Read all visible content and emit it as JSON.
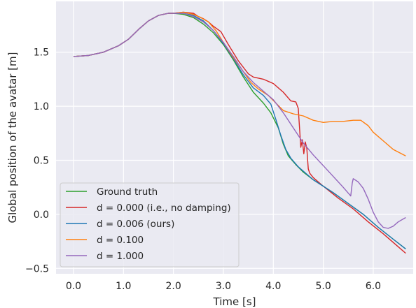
{
  "chart_data": {
    "type": "line",
    "xlabel": "Time [s]",
    "ylabel": "Global position of the avatar [m]",
    "xlim": [
      -0.35,
      6.8
    ],
    "ylim": [
      -0.55,
      1.97
    ],
    "xticks": [
      0.0,
      1.0,
      2.0,
      3.0,
      4.0,
      5.0,
      6.0
    ],
    "xtick_labels": [
      "0.0",
      "1.0",
      "2.0",
      "3.0",
      "4.0",
      "5.0",
      "6.0"
    ],
    "yticks": [
      -0.5,
      0.0,
      0.5,
      1.0,
      1.5
    ],
    "ytick_labels": [
      "−0.5",
      "0.0",
      "0.5",
      "1.0",
      "1.5"
    ],
    "grid": true,
    "legend_position": "lower-left",
    "background": "#eaeaf2",
    "series": [
      {
        "name": "Ground truth",
        "color": "#2ca02c",
        "x": [
          0.0,
          0.3,
          0.6,
          0.9,
          1.1,
          1.3,
          1.5,
          1.7,
          1.9,
          2.0,
          2.2,
          2.4,
          2.6,
          2.8,
          3.0,
          3.2,
          3.4,
          3.6,
          3.8,
          3.95,
          4.1,
          4.2,
          4.3,
          4.45,
          4.6,
          4.8,
          5.0,
          5.2,
          5.5,
          5.8,
          6.1,
          6.4,
          6.65
        ],
        "y": [
          1.46,
          1.47,
          1.5,
          1.56,
          1.62,
          1.71,
          1.79,
          1.84,
          1.86,
          1.86,
          1.85,
          1.82,
          1.76,
          1.68,
          1.57,
          1.43,
          1.27,
          1.13,
          1.03,
          0.94,
          0.8,
          0.65,
          0.54,
          0.46,
          0.39,
          0.32,
          0.26,
          0.2,
          0.1,
          0.0,
          -0.12,
          -0.23,
          -0.32
        ]
      },
      {
        "name": "d = 0.000 (i.e., no damping)",
        "color": "#d62728",
        "x": [
          0.0,
          0.3,
          0.6,
          0.9,
          1.1,
          1.3,
          1.5,
          1.7,
          1.9,
          2.0,
          2.2,
          2.4,
          2.5,
          2.6,
          2.7,
          2.8,
          2.95,
          3.1,
          3.3,
          3.45,
          3.5,
          3.6,
          3.8,
          4.0,
          4.2,
          4.35,
          4.45,
          4.5,
          4.55,
          4.58,
          4.61,
          4.64,
          4.67,
          4.7,
          4.73,
          4.8,
          5.0,
          5.3,
          5.6,
          5.9,
          6.2,
          6.5,
          6.65
        ],
        "y": [
          1.46,
          1.47,
          1.5,
          1.56,
          1.62,
          1.71,
          1.79,
          1.84,
          1.86,
          1.86,
          1.87,
          1.86,
          1.83,
          1.81,
          1.78,
          1.74,
          1.69,
          1.57,
          1.42,
          1.33,
          1.3,
          1.27,
          1.25,
          1.21,
          1.13,
          1.05,
          1.04,
          0.98,
          0.62,
          0.69,
          0.56,
          0.67,
          0.61,
          0.42,
          0.38,
          0.34,
          0.26,
          0.15,
          0.05,
          -0.07,
          -0.18,
          -0.3,
          -0.36
        ]
      },
      {
        "name": "d = 0.006 (ours)",
        "color": "#1f77b4",
        "x": [
          0.0,
          0.3,
          0.6,
          0.9,
          1.1,
          1.3,
          1.5,
          1.7,
          1.9,
          2.0,
          2.2,
          2.4,
          2.6,
          2.8,
          3.0,
          3.2,
          3.4,
          3.5,
          3.6,
          3.8,
          3.95,
          4.05,
          4.15,
          4.25,
          4.35,
          4.5,
          4.65,
          4.8,
          5.0,
          5.2,
          5.5,
          5.8,
          6.1,
          6.4,
          6.65
        ],
        "y": [
          1.46,
          1.47,
          1.5,
          1.56,
          1.62,
          1.71,
          1.79,
          1.84,
          1.86,
          1.86,
          1.86,
          1.84,
          1.79,
          1.7,
          1.58,
          1.44,
          1.29,
          1.23,
          1.17,
          1.1,
          1.02,
          0.88,
          0.73,
          0.6,
          0.52,
          0.44,
          0.38,
          0.32,
          0.26,
          0.2,
          0.1,
          0.0,
          -0.12,
          -0.23,
          -0.32
        ]
      },
      {
        "name": "d = 0.100",
        "color": "#ff7f0e",
        "x": [
          0.0,
          0.3,
          0.6,
          0.9,
          1.1,
          1.3,
          1.5,
          1.7,
          1.9,
          2.0,
          2.2,
          2.4,
          2.55,
          2.7,
          2.85,
          3.0,
          3.2,
          3.4,
          3.55,
          3.7,
          3.9,
          4.05,
          4.2,
          4.4,
          4.6,
          4.8,
          5.0,
          5.2,
          5.4,
          5.6,
          5.75,
          5.9,
          6.0,
          6.2,
          6.4,
          6.65
        ],
        "y": [
          1.46,
          1.47,
          1.5,
          1.56,
          1.62,
          1.71,
          1.79,
          1.84,
          1.86,
          1.86,
          1.87,
          1.85,
          1.82,
          1.78,
          1.7,
          1.59,
          1.45,
          1.32,
          1.22,
          1.16,
          1.1,
          1.03,
          0.96,
          0.93,
          0.91,
          0.87,
          0.85,
          0.86,
          0.86,
          0.87,
          0.87,
          0.82,
          0.76,
          0.68,
          0.6,
          0.54
        ]
      },
      {
        "name": "d = 1.000",
        "color": "#9467bd",
        "x": [
          0.0,
          0.3,
          0.6,
          0.9,
          1.1,
          1.3,
          1.5,
          1.7,
          1.9,
          2.0,
          2.2,
          2.4,
          2.6,
          2.8,
          3.0,
          3.2,
          3.4,
          3.6,
          3.8,
          4.0,
          4.2,
          4.4,
          4.6,
          4.8,
          5.0,
          5.2,
          5.4,
          5.55,
          5.58,
          5.6,
          5.7,
          5.8,
          5.9,
          6.0,
          6.1,
          6.2,
          6.3,
          6.4,
          6.5,
          6.65
        ],
        "y": [
          1.46,
          1.47,
          1.5,
          1.56,
          1.62,
          1.71,
          1.79,
          1.84,
          1.86,
          1.86,
          1.86,
          1.83,
          1.78,
          1.7,
          1.59,
          1.46,
          1.32,
          1.22,
          1.14,
          1.06,
          0.94,
          0.8,
          0.66,
          0.55,
          0.45,
          0.35,
          0.25,
          0.17,
          0.29,
          0.33,
          0.3,
          0.24,
          0.14,
          0.02,
          -0.07,
          -0.12,
          -0.13,
          -0.11,
          -0.07,
          -0.03
        ]
      }
    ]
  }
}
